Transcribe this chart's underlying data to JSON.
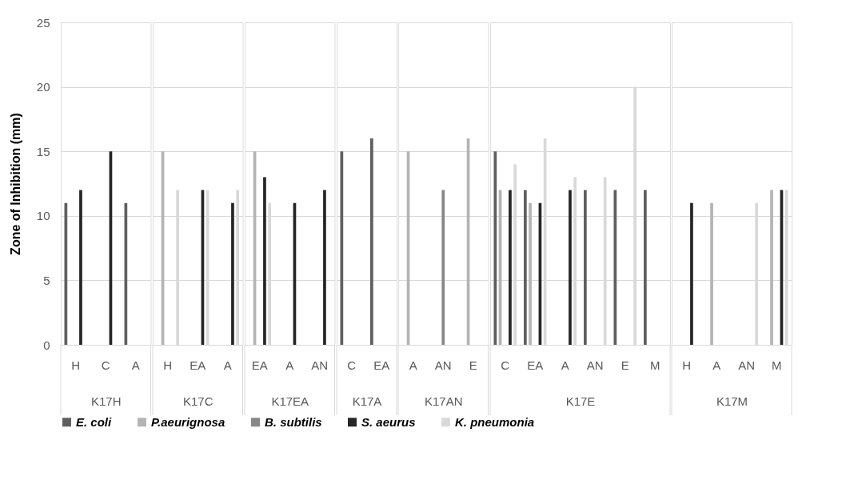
{
  "chart_data": [
    {
      "type": "bar",
      "ylabel": "Zone of Inhibition (mm)",
      "xlabel": "K17H",
      "categories": [
        "H",
        "C",
        "A"
      ],
      "series": [
        {
          "name": "E. coli",
          "color": "#5f5f5f",
          "values": [
            11,
            null,
            11
          ]
        },
        {
          "name": "P.aeurignosa",
          "color": "#b4b4b4",
          "values": [
            null,
            null,
            null
          ]
        },
        {
          "name": "B. subtilis",
          "color": "#878787",
          "values": [
            null,
            null,
            null
          ]
        },
        {
          "name": "S. aeurus",
          "color": "#262626",
          "values": [
            12,
            15,
            null
          ]
        },
        {
          "name": "K. pneumonia",
          "color": "#d9d9d9",
          "values": [
            null,
            null,
            null
          ]
        }
      ],
      "ylim": [
        0,
        25
      ],
      "yticks": [
        0,
        5,
        10,
        15,
        20,
        25
      ],
      "grid": "y",
      "legend": "bottom"
    },
    {
      "type": "bar",
      "xlabel": "K17C",
      "categories": [
        "H",
        "EA",
        "A"
      ],
      "series": [
        {
          "color": "#5f5f5f",
          "values": [
            null,
            null,
            null
          ]
        },
        {
          "color": "#b4b4b4",
          "values": [
            15,
            null,
            null
          ]
        },
        {
          "color": "#878787",
          "values": [
            null,
            null,
            null
          ]
        },
        {
          "color": "#262626",
          "values": [
            null,
            12,
            11
          ]
        },
        {
          "color": "#d9d9d9",
          "values": [
            12,
            12,
            12
          ]
        }
      ],
      "ylim": [
        0,
        25
      ],
      "yticks": [
        0,
        5,
        10,
        15,
        20,
        25
      ],
      "grid": "y",
      "tick_labels": "x"
    },
    {
      "type": "bar",
      "xlabel": "K17EA",
      "categories": [
        "EA",
        "A",
        "AN"
      ],
      "series": [
        {
          "color": "#5f5f5f",
          "values": [
            null,
            null,
            null
          ]
        },
        {
          "color": "#b4b4b4",
          "values": [
            15,
            null,
            null
          ]
        },
        {
          "color": "#878787",
          "values": [
            null,
            null,
            null
          ]
        },
        {
          "color": "#262626",
          "values": [
            13,
            11,
            12
          ]
        },
        {
          "color": "#d9d9d9",
          "values": [
            11,
            null,
            null
          ]
        }
      ],
      "ylim": [
        0,
        25
      ],
      "yticks": [
        0,
        5,
        10,
        15,
        20,
        25
      ],
      "grid": "y",
      "tick_labels": "x"
    },
    {
      "type": "bar",
      "xlabel": "K17A",
      "categories": [
        "C",
        "EA"
      ],
      "series": [
        {
          "color": "#5f5f5f",
          "values": [
            15,
            16
          ]
        },
        {
          "color": "#b4b4b4",
          "values": [
            null,
            null
          ]
        },
        {
          "color": "#878787",
          "values": [
            null,
            null
          ]
        },
        {
          "color": "#262626",
          "values": [
            null,
            null
          ]
        },
        {
          "color": "#d9d9d9",
          "values": [
            null,
            null
          ]
        }
      ],
      "ylim": [
        0,
        25
      ],
      "yticks": [
        0,
        5,
        10,
        15,
        20,
        25
      ],
      "grid": "y",
      "tick_labels": "x"
    },
    {
      "type": "bar",
      "xlabel": "K17AN",
      "categories": [
        "A",
        "AN",
        "E"
      ],
      "series": [
        {
          "color": "#5f5f5f",
          "values": [
            null,
            null,
            null
          ]
        },
        {
          "color": "#b4b4b4",
          "values": [
            15,
            null,
            16
          ]
        },
        {
          "color": "#878787",
          "values": [
            null,
            12,
            null
          ]
        },
        {
          "color": "#262626",
          "values": [
            null,
            null,
            null
          ]
        },
        {
          "color": "#d9d9d9",
          "values": [
            null,
            null,
            null
          ]
        }
      ],
      "ylim": [
        0,
        25
      ],
      "yticks": [
        0,
        5,
        10,
        15,
        20,
        25
      ],
      "grid": "y",
      "tick_labels": "x"
    },
    {
      "type": "bar",
      "xlabel": "K17E",
      "categories": [
        "C",
        "EA",
        "A",
        "AN",
        "E",
        "M"
      ],
      "series": [
        {
          "color": "#5f5f5f",
          "values": [
            15,
            12,
            null,
            12,
            12,
            12
          ]
        },
        {
          "color": "#b4b4b4",
          "values": [
            12,
            11,
            null,
            null,
            null,
            null
          ]
        },
        {
          "color": "#878787",
          "values": [
            null,
            null,
            null,
            null,
            null,
            null
          ]
        },
        {
          "color": "#262626",
          "values": [
            12,
            11,
            12,
            null,
            null,
            null
          ]
        },
        {
          "color": "#d9d9d9",
          "values": [
            14,
            16,
            13,
            13,
            20,
            null
          ]
        }
      ],
      "ylim": [
        0,
        25
      ],
      "yticks": [
        0,
        5,
        10,
        15,
        20,
        25
      ],
      "grid": "y",
      "tick_labels": "x"
    },
    {
      "type": "bar",
      "xlabel": "K17M",
      "categories": [
        "H",
        "A",
        "AN",
        "M"
      ],
      "series": [
        {
          "color": "#5f5f5f",
          "values": [
            null,
            null,
            null,
            null
          ]
        },
        {
          "color": "#b4b4b4",
          "values": [
            null,
            11,
            null,
            12
          ]
        },
        {
          "color": "#878787",
          "values": [
            null,
            null,
            null,
            null
          ]
        },
        {
          "color": "#262626",
          "values": [
            11,
            null,
            null,
            12
          ]
        },
        {
          "color": "#d9d9d9",
          "values": [
            null,
            null,
            11,
            12
          ]
        }
      ],
      "ylim": [
        0,
        25
      ],
      "yticks": [
        0,
        5,
        10,
        15,
        20,
        25
      ],
      "grid": "y",
      "tick_labels": "x"
    }
  ]
}
